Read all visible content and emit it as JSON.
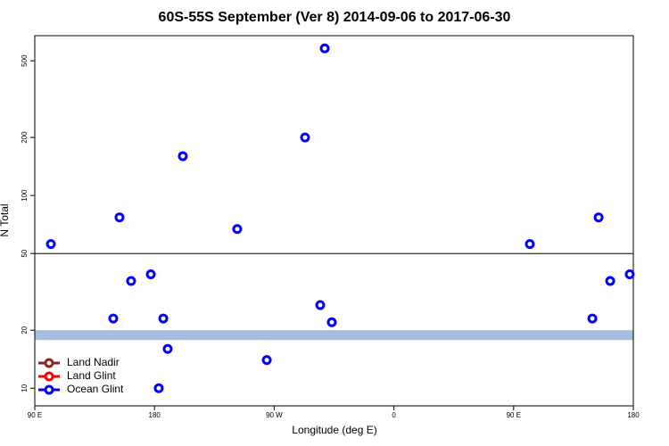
{
  "chart_data": {
    "type": "scatter",
    "title": "60S-55S September (Ver 8)   2014-09-06 to 2017-06-30",
    "x_label": "Longitude (deg E)",
    "y_label": "N Total",
    "xlim": [
      90,
      540
    ],
    "xticks": [
      {
        "value": 90,
        "label": "90 E"
      },
      180,
      {
        "value": 270,
        "label": "90 W"
      },
      {
        "value": 360,
        "label": "0"
      },
      {
        "value": 450,
        "label": "90 E"
      },
      {
        "value": 540,
        "label": "180"
      }
    ],
    "ylim": [
      8.1,
      675
    ],
    "log_y": true,
    "yticks": [
      10,
      20,
      50,
      100,
      200,
      500
    ],
    "hline": 50,
    "hline_color": "#000000",
    "band": [
      17.8,
      20
    ],
    "band_color": "#a6bddb",
    "legend": "bottom-left",
    "series": [
      {
        "name": "Land Nadir",
        "color": "#8b2323",
        "x": [],
        "values": []
      },
      {
        "name": "Land Glint",
        "color": "#ff0000",
        "x": [],
        "values": []
      },
      {
        "name": "Ocean Glint",
        "color": "#0000ff",
        "x": [
          102.1,
          149,
          153.7,
          162.4,
          177.2,
          183.2,
          186.6,
          189.9,
          201.3,
          242.2,
          264.4,
          293.2,
          304.6,
          308,
          313.3,
          462.2,
          509.2,
          513.9,
          522.6,
          537.3
        ],
        "values": [
          56,
          23,
          77,
          36,
          39,
          10,
          23,
          16,
          160,
          67,
          14,
          200,
          27,
          580,
          22,
          56,
          23,
          77,
          36,
          39
        ]
      }
    ]
  }
}
